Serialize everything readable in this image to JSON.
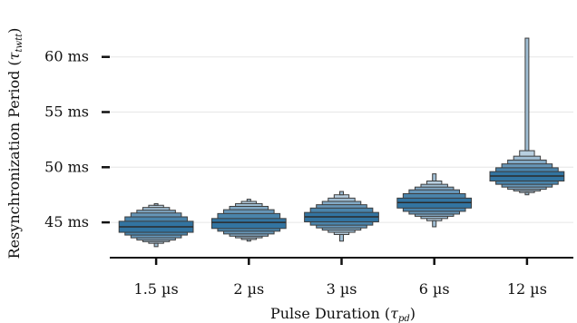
{
  "chart_data": {
    "type": "boxen",
    "xlabel_main": "Pulse Duration (",
    "xlabel_symbol": "τ",
    "xlabel_sub": "pd",
    "xlabel_end": ")",
    "ylabel_main": "Resynchronization Period (",
    "ylabel_symbol": "τ",
    "ylabel_sub": "twtt",
    "ylabel_end": ")",
    "categories": [
      "1.5 µs",
      "2 µs",
      "3 µs",
      "6 µs",
      "12 µs"
    ],
    "y_ticks": [
      45,
      50,
      55,
      60
    ],
    "y_tick_labels": [
      "45 ms",
      "50 ms",
      "55 ms",
      "60 ms"
    ],
    "ylim": [
      41.8,
      64.5
    ],
    "grid": "horizontal",
    "box_color": "#3274a1",
    "edge_color": "#3c3c3c",
    "series": [
      {
        "category": "1.5 µs",
        "median": 44.6,
        "levels": [
          [
            44.1,
            45.1
          ],
          [
            43.85,
            45.5
          ],
          [
            43.6,
            45.85
          ],
          [
            43.4,
            46.1
          ],
          [
            43.25,
            46.35
          ],
          [
            43.1,
            46.55
          ]
        ],
        "outliers_low": [
          42.8,
          43.0
        ],
        "outliers_high": [
          46.7
        ]
      },
      {
        "category": "2 µs",
        "median": 45.0,
        "levels": [
          [
            44.45,
            45.35
          ],
          [
            44.2,
            45.8
          ],
          [
            43.95,
            46.15
          ],
          [
            43.75,
            46.45
          ],
          [
            43.6,
            46.7
          ],
          [
            43.45,
            46.9
          ]
        ],
        "outliers_low": [
          43.3
        ],
        "outliers_high": [
          47.1
        ]
      },
      {
        "category": "3 µs",
        "median": 45.5,
        "levels": [
          [
            45.05,
            45.9
          ],
          [
            44.75,
            46.3
          ],
          [
            44.5,
            46.6
          ],
          [
            44.3,
            46.9
          ],
          [
            44.1,
            47.2
          ],
          [
            43.9,
            47.5
          ]
        ],
        "outliers_low": [
          43.3,
          43.6
        ],
        "outliers_high": [
          47.8
        ]
      },
      {
        "category": "6 µs",
        "median": 46.8,
        "levels": [
          [
            46.3,
            47.2
          ],
          [
            46.0,
            47.6
          ],
          [
            45.75,
            47.95
          ],
          [
            45.55,
            48.2
          ],
          [
            45.35,
            48.45
          ],
          [
            45.15,
            48.75
          ]
        ],
        "outliers_low": [
          44.6,
          44.9
        ],
        "outliers_high": [
          49.0,
          49.4
        ]
      },
      {
        "category": "12 µs",
        "median": 49.2,
        "levels": [
          [
            48.75,
            49.6
          ],
          [
            48.45,
            49.95
          ],
          [
            48.2,
            50.3
          ],
          [
            48.0,
            50.65
          ],
          [
            47.85,
            51.0
          ],
          [
            47.7,
            51.5
          ]
        ],
        "outliers_low": [
          47.5
        ],
        "outliers_high": [
          52.0,
          53.5,
          55.0,
          56.5,
          58.0,
          59.5,
          61.0,
          61.7
        ]
      }
    ]
  }
}
